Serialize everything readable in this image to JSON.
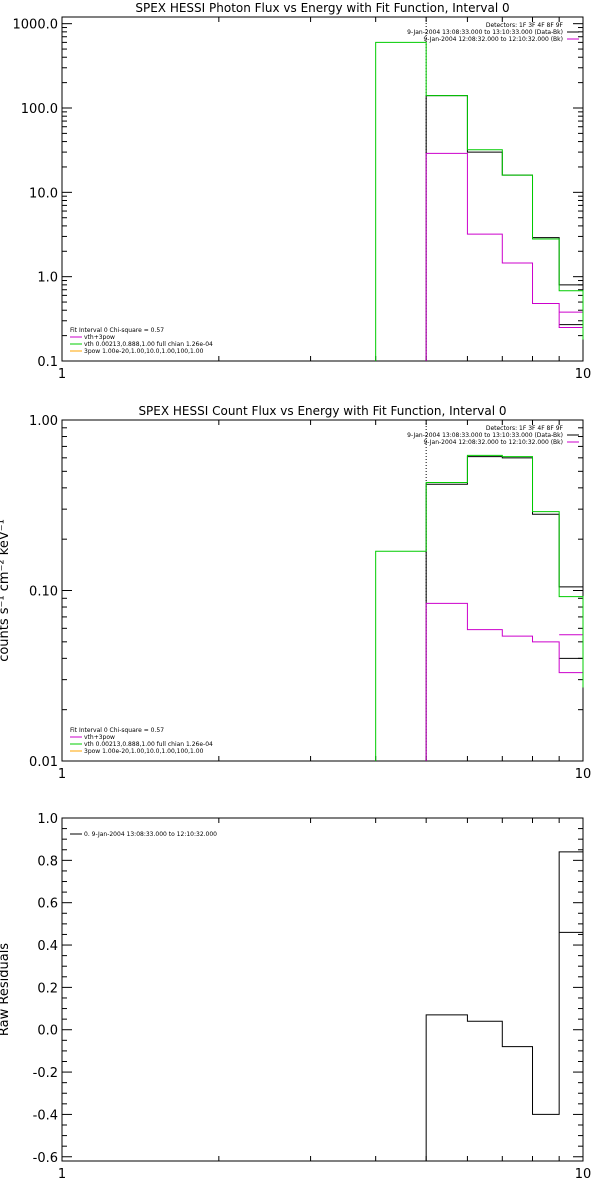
{
  "colors": {
    "black": "#000000",
    "magenta": "#cc00cc",
    "green": "#00cc00",
    "orange": "#ffa500"
  },
  "chart_data": [
    {
      "id": "photon",
      "type": "line",
      "title": "SPEX HESSI Photon Flux vs Energy with Fit Function, Interval 0",
      "xlabel": "",
      "ylabel": "",
      "xscale": "log",
      "yscale": "log",
      "xlim": [
        1,
        10
      ],
      "ylim": [
        0.1,
        1200
      ],
      "xticks": [
        {
          "v": 1,
          "label": "1"
        },
        {
          "v": 10,
          "label": "10"
        }
      ],
      "yticks": [
        {
          "v": 1000,
          "label": "1000.0"
        },
        {
          "v": 100,
          "label": "100.0"
        },
        {
          "v": 10,
          "label": "10.0"
        },
        {
          "v": 1,
          "label": "1.0"
        },
        {
          "v": 0.1,
          "label": "0.1"
        }
      ],
      "dotted_x": 5.0,
      "header": [
        "Detectors: 1F 3F 4F 8F 9F",
        "9-Jan-2004 13:08:33.000 to 13:10:33.000 (Data-Bk)",
        "9-Jan-2004 12:08:32.000 to 12:10:32.000 (Bk)"
      ],
      "header_colors": [
        "none",
        "#000000",
        "#cc00cc"
      ],
      "legend": [
        "Fit Interval  0    Chi-square = 0.57",
        "vth+3pow",
        "vth 0.00213,0.888,1.00   full chian 1.26e-04",
        "3pow 1.00e-20,1.00,10.0,1.00,100,1.00"
      ],
      "legend_colors": [
        "none",
        "#cc00cc",
        "#00cc00",
        "#ffa500"
      ],
      "series": [
        {
          "color": "#000000",
          "edges": [
            5,
            6,
            7,
            8,
            9,
            10
          ],
          "values": [
            140,
            30,
            16,
            2.9,
            0.8
          ]
        },
        {
          "color": "#000000",
          "edges": [
            9,
            10
          ],
          "values": [
            0.27
          ]
        },
        {
          "color": "#cc00cc",
          "edges": [
            5,
            6,
            7,
            8,
            9,
            10
          ],
          "values": [
            29,
            3.2,
            1.45,
            0.48,
            0.25
          ]
        },
        {
          "color": "#cc00cc",
          "edges": [
            9,
            10
          ],
          "values": [
            0.38
          ]
        },
        {
          "color": "#00cc00",
          "edges": [
            4,
            5,
            6,
            7,
            8,
            9,
            10
          ],
          "values": [
            600,
            140,
            32,
            16,
            2.8,
            0.68,
            0.18
          ]
        }
      ]
    },
    {
      "id": "count",
      "type": "line",
      "title": "SPEX HESSI Count Flux vs Energy with Fit Function, Interval 0",
      "xlabel": "",
      "ylabel": "counts s⁻¹ cm⁻² keV⁻¹",
      "xscale": "log",
      "yscale": "log",
      "xlim": [
        1,
        10
      ],
      "ylim": [
        0.01,
        1.0
      ],
      "xticks": [
        {
          "v": 1,
          "label": "1"
        },
        {
          "v": 10,
          "label": "10"
        }
      ],
      "yticks": [
        {
          "v": 1,
          "label": "1.00"
        },
        {
          "v": 0.1,
          "label": "0.10"
        },
        {
          "v": 0.01,
          "label": "0.01"
        }
      ],
      "dotted_x": 5.0,
      "header": [
        "Detectors: 1F 3F 4F 8F 9F",
        "9-Jan-2004 13:08:33.000 to 13:10:33.000 (Data-Bk)",
        "9-Jan-2004 12:08:32.000 to 12:10:32.000 (Bk)"
      ],
      "header_colors": [
        "none",
        "#000000",
        "#cc00cc"
      ],
      "legend": [
        "Fit Interval  0    Chi-square = 0.57",
        "vth+3pow",
        "vth 0.00213,0.888,1.00   full chian 1.26e-04",
        "3pow 1.00e-20,1.00,10.0,1.00,100,1.00"
      ],
      "legend_colors": [
        "none",
        "#cc00cc",
        "#00cc00",
        "#ffa500"
      ],
      "series": [
        {
          "color": "#000000",
          "edges": [
            5,
            6,
            7,
            8,
            9,
            10
          ],
          "values": [
            0.42,
            0.61,
            0.6,
            0.28,
            0.105
          ]
        },
        {
          "color": "#000000",
          "edges": [
            9,
            10
          ],
          "values": [
            0.04
          ]
        },
        {
          "color": "#cc00cc",
          "edges": [
            5,
            6,
            7,
            8,
            9,
            10
          ],
          "values": [
            0.084,
            0.059,
            0.054,
            0.05,
            0.033
          ]
        },
        {
          "color": "#cc00cc",
          "edges": [
            9,
            10
          ],
          "values": [
            0.055
          ]
        },
        {
          "color": "#00cc00",
          "edges": [
            4,
            5,
            6,
            7,
            8,
            9,
            10
          ],
          "values": [
            0.17,
            0.43,
            0.62,
            0.61,
            0.29,
            0.092,
            0.027
          ]
        }
      ]
    },
    {
      "id": "resid",
      "type": "line",
      "title": "",
      "xlabel": "",
      "ylabel": "Raw Residuals",
      "xscale": "log",
      "yscale": "linear",
      "xlim": [
        1,
        10
      ],
      "ylim": [
        -0.62,
        1.0
      ],
      "xticks": [
        {
          "v": 1,
          "label": "1"
        },
        {
          "v": 10,
          "label": "10"
        }
      ],
      "yticks": [
        {
          "v": 1.0,
          "label": "1.0"
        },
        {
          "v": 0.8,
          "label": "0.8"
        },
        {
          "v": 0.6,
          "label": "0.6"
        },
        {
          "v": 0.4,
          "label": "0.4"
        },
        {
          "v": 0.2,
          "label": "0.2"
        },
        {
          "v": 0.0,
          "label": "0.0"
        },
        {
          "v": -0.2,
          "label": "-0.2"
        },
        {
          "v": -0.4,
          "label": "-0.4"
        },
        {
          "v": -0.6,
          "label": "-0.6"
        }
      ],
      "legend": [
        "0.  9-Jan-2004 13:08:33.000 to 12:10:32.000"
      ],
      "legend_colors": [
        "#000000"
      ],
      "series": [
        {
          "color": "#000000",
          "edges": [
            5,
            6,
            7,
            8,
            9,
            10
          ],
          "values": [
            0.07,
            0.04,
            -0.08,
            -0.4,
            0.84
          ]
        },
        {
          "color": "#000000",
          "edges": [
            9,
            10
          ],
          "values": [
            0.46
          ]
        }
      ]
    }
  ]
}
